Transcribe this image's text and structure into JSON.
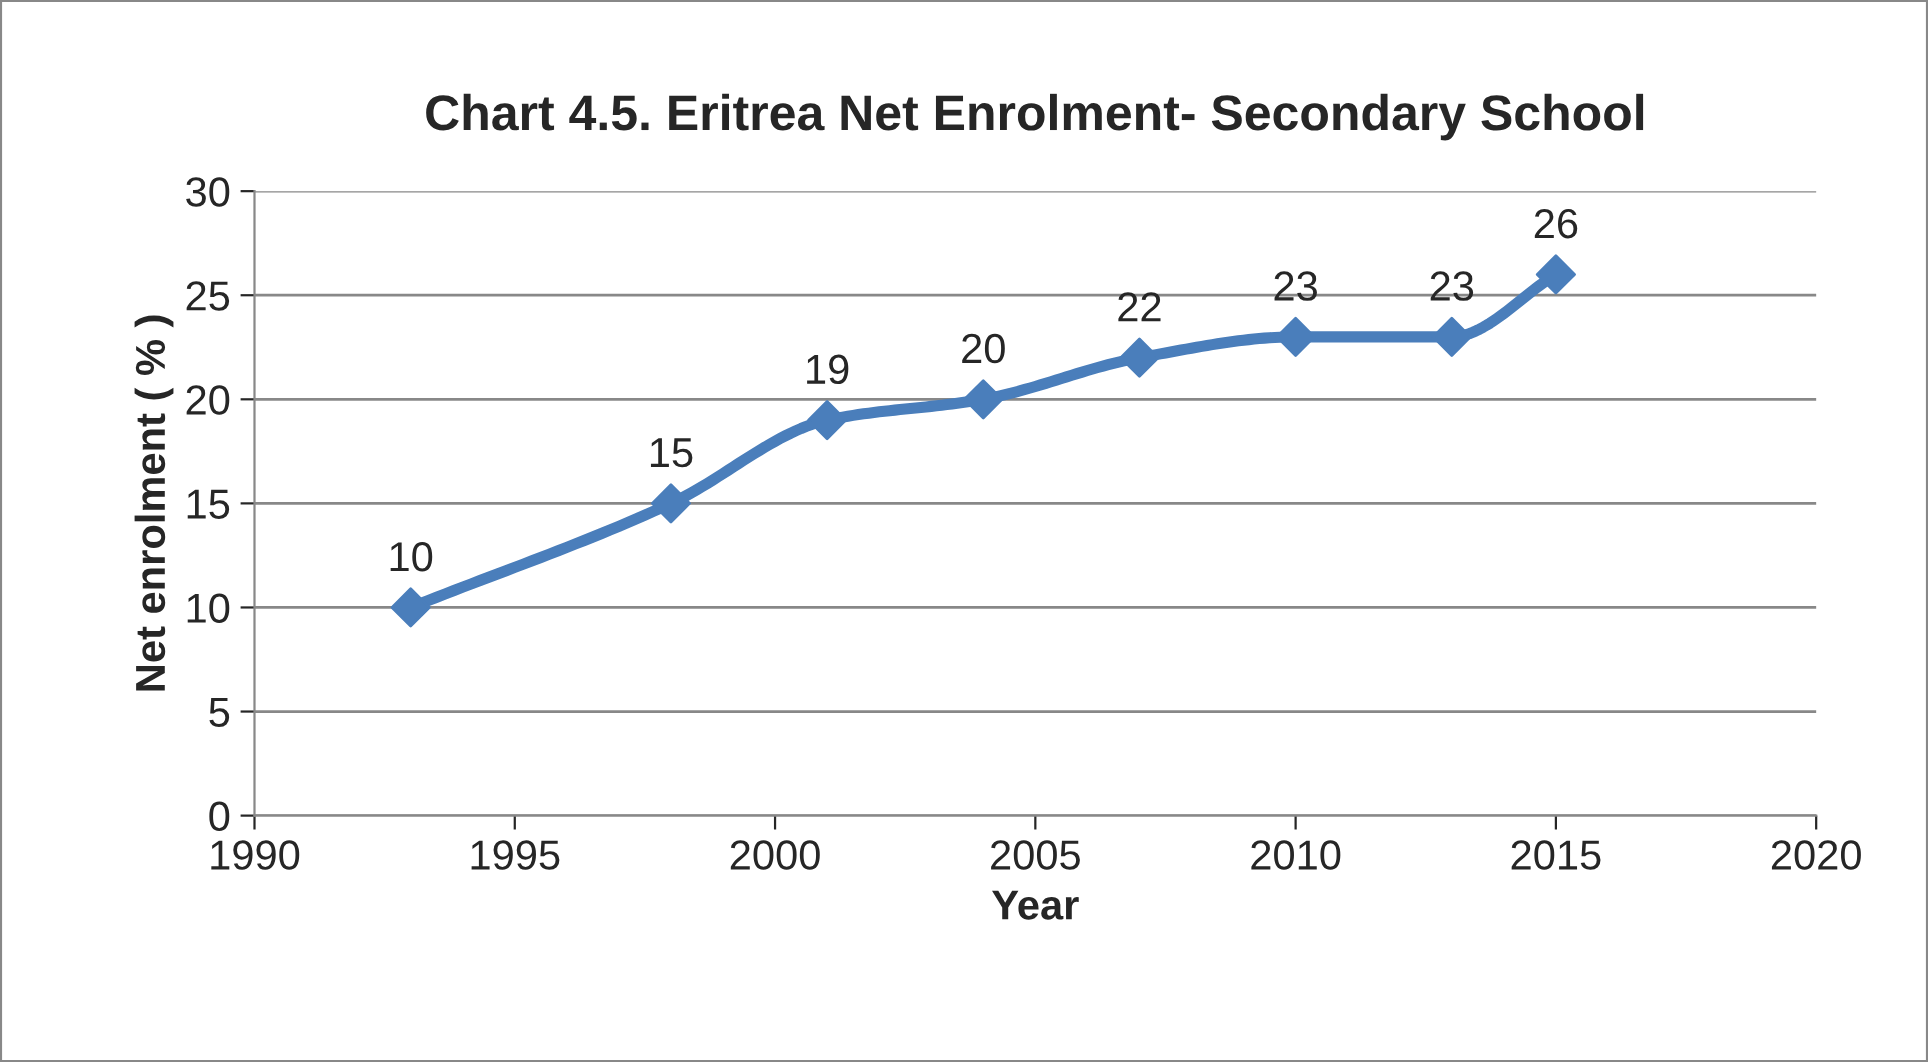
{
  "chart_data": {
    "type": "line",
    "title": "Chart 4.5. Eritrea Net Enrolment- Secondary School",
    "xlabel": "Year",
    "ylabel": "Net enrolment ( % )",
    "x": [
      1993,
      1998,
      2001,
      2004,
      2007,
      2010,
      2013,
      2015
    ],
    "series": [
      {
        "color": "#4a7ebb",
        "values": [
          10,
          15,
          19,
          20,
          22,
          23,
          23,
          26
        ]
      }
    ],
    "xlim": [
      1990,
      2020
    ],
    "xticks": [
      1990,
      1995,
      2000,
      2005,
      2010,
      2015,
      2020
    ],
    "ylim": [
      0,
      30
    ],
    "yticks": [
      0,
      5,
      10,
      15,
      20,
      25,
      30
    ],
    "grid": "y",
    "marker": "diamond",
    "line_style": "solid",
    "data_labels": true,
    "legend": false
  }
}
